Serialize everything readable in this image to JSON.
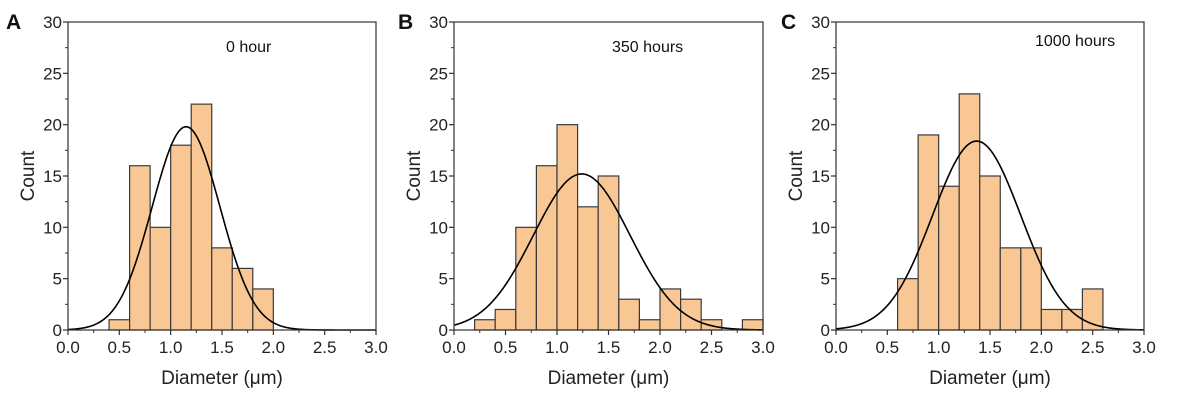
{
  "colors": {
    "bar_fill": "#F9C794",
    "bar_stroke": "#3a3a3a",
    "curve": "#000000",
    "axis": "#333333"
  },
  "chart_data": [
    {
      "type": "bar",
      "panel_label": "A",
      "annotation": "0 hour",
      "xlabel": "Diameter (μm)",
      "ylabel": "Count",
      "xlim": [
        0,
        3.0
      ],
      "ylim": [
        0,
        30
      ],
      "xticks": [
        "0.0",
        "0.5",
        "1.0",
        "1.5",
        "2.0",
        "2.5",
        "3.0"
      ],
      "yticks": [
        "0",
        "5",
        "10",
        "15",
        "20",
        "25",
        "30"
      ],
      "bin_width": 0.2,
      "bin_starts": [
        0.4,
        0.6,
        0.8,
        1.0,
        1.2,
        1.4,
        1.6,
        1.8
      ],
      "values": [
        1,
        16,
        10,
        18,
        22,
        8,
        6,
        4
      ],
      "fit": {
        "type": "gaussian",
        "peak": 19.8,
        "mean": 1.15,
        "sigma": 0.33
      }
    },
    {
      "type": "bar",
      "panel_label": "B",
      "annotation": "350 hours",
      "xlabel": "Diameter (μm)",
      "ylabel": "Count",
      "xlim": [
        0,
        3.0
      ],
      "ylim": [
        0,
        30
      ],
      "xticks": [
        "0.0",
        "0.5",
        "1.0",
        "1.5",
        "2.0",
        "2.5",
        "3.0"
      ],
      "yticks": [
        "0",
        "5",
        "10",
        "15",
        "20",
        "25",
        "30"
      ],
      "bin_width": 0.2,
      "bin_starts": [
        0.2,
        0.4,
        0.6,
        0.8,
        1.0,
        1.2,
        1.4,
        1.6,
        1.8,
        2.0,
        2.2,
        2.4,
        2.6,
        2.8
      ],
      "values": [
        1,
        2,
        10,
        16,
        20,
        12,
        15,
        3,
        1,
        4,
        3,
        1,
        0,
        1
      ],
      "fit": {
        "type": "gaussian",
        "peak": 15.2,
        "mean": 1.24,
        "sigma": 0.47
      }
    },
    {
      "type": "bar",
      "panel_label": "C",
      "annotation": "1000 hours",
      "xlabel": "Diameter (μm)",
      "ylabel": "Count",
      "xlim": [
        0,
        3.0
      ],
      "ylim": [
        0,
        30
      ],
      "xticks": [
        "0.0",
        "0.5",
        "1.0",
        "1.5",
        "2.0",
        "2.5",
        "3.0"
      ],
      "yticks": [
        "0",
        "5",
        "10",
        "15",
        "20",
        "25",
        "30"
      ],
      "bin_width": 0.2,
      "bin_starts": [
        0.6,
        0.8,
        1.0,
        1.2,
        1.4,
        1.6,
        1.8,
        2.0,
        2.2,
        2.4
      ],
      "values": [
        5,
        19,
        14,
        23,
        15,
        8,
        8,
        2,
        2,
        4
      ],
      "fit": {
        "type": "gaussian",
        "peak": 18.4,
        "mean": 1.37,
        "sigma": 0.43
      }
    }
  ]
}
